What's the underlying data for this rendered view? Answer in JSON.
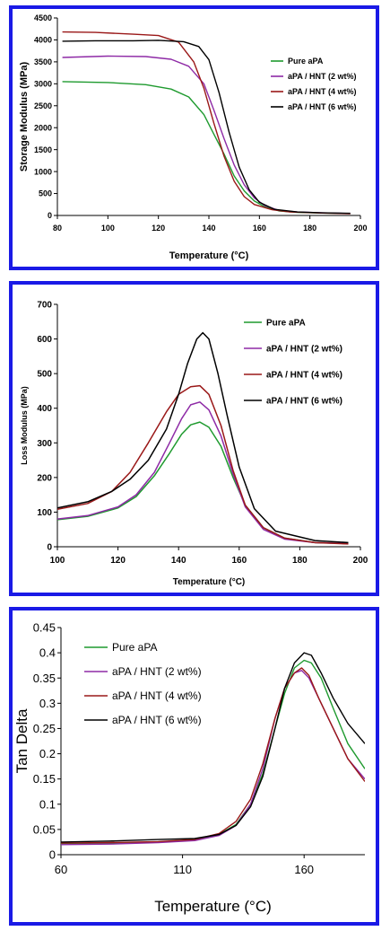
{
  "charts": [
    {
      "type": "line",
      "xlabel": "Temperature (°C)",
      "ylabel": "Storage Modulus (MPa)",
      "xlim": [
        80,
        200
      ],
      "ylim": [
        0,
        4500
      ],
      "xticks": [
        "80",
        "100",
        "120",
        "140",
        "160",
        "180",
        "200"
      ],
      "yticks": [
        "0",
        "500",
        "1000",
        "1500",
        "2000",
        "2500",
        "3000",
        "3500",
        "4000",
        "4500"
      ],
      "legend_position": "right",
      "series": [
        {
          "name": "Pure aPA",
          "color": "#1e9a2e",
          "x": [
            82,
            100,
            115,
            125,
            132,
            138,
            142,
            146,
            150,
            154,
            158,
            162,
            168,
            175,
            185,
            196
          ],
          "y": [
            3050,
            3030,
            2980,
            2880,
            2700,
            2300,
            1850,
            1400,
            900,
            560,
            330,
            200,
            100,
            70,
            55,
            45
          ]
        },
        {
          "name": "aPA / HNT (2 wt%)",
          "color": "#8e2aa6",
          "x": [
            82,
            100,
            115,
            125,
            132,
            138,
            142,
            146,
            150,
            154,
            158,
            162,
            168,
            175,
            185,
            196
          ],
          "y": [
            3600,
            3630,
            3620,
            3560,
            3400,
            3000,
            2400,
            1750,
            1150,
            700,
            400,
            230,
            110,
            80,
            60,
            45
          ]
        },
        {
          "name": "aPA / HNT (4 wt%)",
          "color": "#9a1818",
          "x": [
            82,
            95,
            110,
            120,
            128,
            134,
            138,
            142,
            146,
            150,
            154,
            158,
            165,
            172,
            185,
            196
          ],
          "y": [
            4180,
            4170,
            4130,
            4100,
            3950,
            3500,
            2900,
            2100,
            1350,
            780,
            430,
            250,
            130,
            80,
            55,
            40
          ]
        },
        {
          "name": "aPA / HNT (6 wt%)",
          "color": "#000000",
          "x": [
            82,
            95,
            110,
            120,
            130,
            136,
            140,
            144,
            148,
            152,
            156,
            160,
            166,
            175,
            185,
            196
          ],
          "y": [
            3970,
            3980,
            3980,
            3990,
            3960,
            3850,
            3550,
            2800,
            1900,
            1100,
            580,
            300,
            140,
            80,
            60,
            50
          ]
        }
      ]
    },
    {
      "type": "line",
      "xlabel": "Temperature (°C)",
      "ylabel": "Loss Modulus (MPa)",
      "xlim": [
        100,
        200
      ],
      "ylim": [
        0,
        700
      ],
      "xticks": [
        "100",
        "120",
        "140",
        "160",
        "180",
        "200"
      ],
      "yticks": [
        "0",
        "100",
        "200",
        "300",
        "400",
        "500",
        "600",
        "700"
      ],
      "legend_position": "right",
      "series": [
        {
          "name": "Pure aPA",
          "color": "#1e9a2e",
          "x": [
            100,
            110,
            120,
            126,
            132,
            137,
            141,
            144,
            147,
            150,
            154,
            158,
            162,
            168,
            175,
            185,
            196
          ],
          "y": [
            78,
            88,
            112,
            145,
            205,
            270,
            325,
            352,
            360,
            345,
            290,
            200,
            120,
            55,
            25,
            12,
            9
          ]
        },
        {
          "name": "aPA / HNT (2 wt%)",
          "color": "#8e2aa6",
          "x": [
            100,
            110,
            120,
            126,
            132,
            137,
            141,
            144,
            147,
            150,
            154,
            158,
            162,
            168,
            175,
            185,
            196
          ],
          "y": [
            80,
            90,
            115,
            150,
            215,
            300,
            370,
            410,
            418,
            395,
            320,
            210,
            115,
            50,
            22,
            12,
            9
          ]
        },
        {
          "name": "aPA / HNT (4 wt%)",
          "color": "#9a1818",
          "x": [
            100,
            110,
            118,
            124,
            130,
            136,
            140,
            144,
            147,
            150,
            154,
            158,
            162,
            168,
            175,
            185,
            196
          ],
          "y": [
            108,
            125,
            160,
            215,
            300,
            390,
            440,
            462,
            465,
            440,
            350,
            220,
            120,
            55,
            25,
            12,
            8
          ]
        },
        {
          "name": "aPA / HNT (6 wt%)",
          "color": "#000000",
          "x": [
            100,
            110,
            118,
            124,
            130,
            136,
            140,
            143,
            146,
            148,
            150,
            153,
            156,
            160,
            165,
            172,
            185,
            196
          ],
          "y": [
            112,
            130,
            160,
            195,
            250,
            340,
            440,
            530,
            600,
            618,
            600,
            500,
            380,
            230,
            110,
            45,
            18,
            12
          ]
        }
      ]
    },
    {
      "type": "line",
      "xlabel": "Temperature (°C)",
      "ylabel": "Tan Delta",
      "xlim": [
        60,
        185
      ],
      "ylim": [
        0,
        0.45
      ],
      "xticks": [
        "60",
        "110",
        "160"
      ],
      "yticks": [
        "0",
        "0.05",
        "0.1",
        "0.15",
        "0.2",
        "0.25",
        "0.3",
        "0.35",
        "0.4",
        "0.45"
      ],
      "legend_position": "top-left",
      "series": [
        {
          "name": "Pure aPA",
          "color": "#1e9a2e",
          "x": [
            60,
            80,
            100,
            115,
            125,
            132,
            138,
            143,
            148,
            152,
            156,
            160,
            163,
            167,
            172,
            178,
            185
          ],
          "y": [
            0.022,
            0.023,
            0.025,
            0.03,
            0.04,
            0.06,
            0.1,
            0.16,
            0.25,
            0.32,
            0.37,
            0.385,
            0.38,
            0.35,
            0.29,
            0.22,
            0.17
          ]
        },
        {
          "name": "aPA / HNT (2 wt%)",
          "color": "#8e2aa6",
          "x": [
            60,
            80,
            100,
            115,
            125,
            132,
            138,
            143,
            148,
            152,
            156,
            159,
            162,
            166,
            172,
            178,
            185
          ],
          "y": [
            0.02,
            0.021,
            0.024,
            0.028,
            0.038,
            0.058,
            0.1,
            0.17,
            0.27,
            0.33,
            0.36,
            0.365,
            0.35,
            0.31,
            0.25,
            0.19,
            0.15
          ]
        },
        {
          "name": "aPA / HNT (4 wt%)",
          "color": "#9a1818",
          "x": [
            60,
            80,
            100,
            115,
            125,
            132,
            138,
            143,
            148,
            152,
            156,
            159,
            162,
            166,
            172,
            178,
            185
          ],
          "y": [
            0.023,
            0.024,
            0.026,
            0.03,
            0.042,
            0.066,
            0.11,
            0.18,
            0.27,
            0.33,
            0.36,
            0.37,
            0.355,
            0.31,
            0.25,
            0.19,
            0.145
          ]
        },
        {
          "name": "aPA / HNT (6 wt%)",
          "color": "#000000",
          "x": [
            60,
            80,
            100,
            115,
            125,
            132,
            138,
            143,
            148,
            152,
            156,
            160,
            163,
            167,
            172,
            178,
            185
          ],
          "y": [
            0.025,
            0.027,
            0.03,
            0.032,
            0.04,
            0.058,
            0.095,
            0.155,
            0.25,
            0.33,
            0.38,
            0.4,
            0.395,
            0.36,
            0.31,
            0.26,
            0.22
          ]
        }
      ]
    }
  ]
}
